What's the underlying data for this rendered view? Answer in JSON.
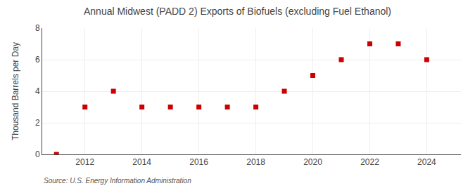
{
  "chart_data": {
    "type": "scatter",
    "title": "Annual Midwest (PADD 2) Exports of Biofuels (excluding Fuel Ethanol)",
    "ylabel": "Thousand Barrels per Day",
    "annotations": [
      "Source: U.S. Energy Information Administration"
    ],
    "x": [
      2011,
      2012,
      2013,
      2014,
      2015,
      2016,
      2017,
      2018,
      2019,
      2020,
      2021,
      2022,
      2023,
      2024
    ],
    "values": [
      0,
      3,
      4,
      3,
      3,
      3,
      3,
      3,
      4,
      5,
      6,
      7,
      7,
      6
    ],
    "color": "#cc0000",
    "marker": "square",
    "xlim": [
      2010.5,
      2025.2
    ],
    "xticks": [
      2012,
      2014,
      2016,
      2018,
      2020,
      2022,
      2024
    ],
    "ylim": [
      0,
      8
    ],
    "yticks": [
      0,
      2,
      4,
      6,
      8
    ],
    "grid": true
  }
}
